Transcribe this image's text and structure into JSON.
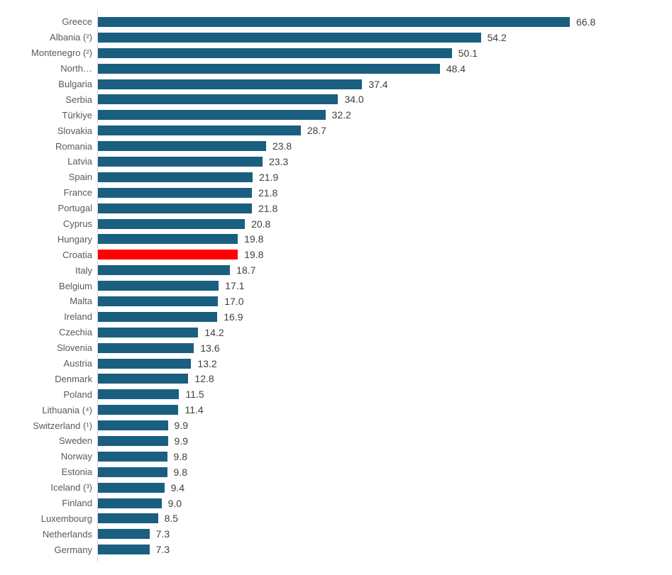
{
  "chart_data": {
    "type": "bar",
    "orientation": "horizontal",
    "title": "",
    "xlabel": "",
    "ylabel": "",
    "xlim": [
      0,
      70
    ],
    "grid": false,
    "legend": "none",
    "categories": [
      "Greece",
      "Albania (²)",
      "Montenegro (²)",
      "North…",
      "Bulgaria",
      "Serbia",
      "Türkiye",
      "Slovakia",
      "Romania",
      "Latvia",
      "Spain",
      "France",
      "Portugal",
      "Cyprus",
      "Hungary",
      "Croatia",
      "Italy",
      "Belgium",
      "Malta",
      "Ireland",
      "Czechia",
      "Slovenia",
      "Austria",
      "Denmark",
      "Poland",
      "Lithuania (⁴)",
      "Switzerland (¹)",
      "Sweden",
      "Norway",
      "Estonia",
      "Iceland (³)",
      "Finland",
      "Luxembourg",
      "Netherlands",
      "Germany"
    ],
    "values": [
      66.8,
      54.2,
      50.1,
      48.4,
      37.4,
      34.0,
      32.2,
      28.7,
      23.8,
      23.3,
      21.9,
      21.8,
      21.8,
      20.8,
      19.8,
      19.8,
      18.7,
      17.1,
      17.0,
      16.9,
      14.2,
      13.6,
      13.2,
      12.8,
      11.5,
      11.4,
      9.9,
      9.9,
      9.8,
      9.8,
      9.4,
      9.0,
      8.5,
      7.3,
      7.3
    ],
    "value_labels": [
      "66.8",
      "54.2",
      "50.1",
      "48.4",
      "37.4",
      "34.0",
      "32.2",
      "28.7",
      "23.8",
      "23.3",
      "21.9",
      "21.8",
      "21.8",
      "20.8",
      "19.8",
      "19.8",
      "18.7",
      "17.1",
      "17.0",
      "16.9",
      "14.2",
      "13.6",
      "13.2",
      "12.8",
      "11.5",
      "11.4",
      "9.9",
      "9.9",
      "9.8",
      "9.8",
      "9.4",
      "9.0",
      "8.5",
      "7.3",
      "7.3"
    ],
    "bar_color": "#1A5F80",
    "highlight": {
      "category": "Croatia",
      "color": "#FF0000"
    },
    "axis_color": "#d9d9d9",
    "label_color": "#595959",
    "value_color": "#404040"
  }
}
